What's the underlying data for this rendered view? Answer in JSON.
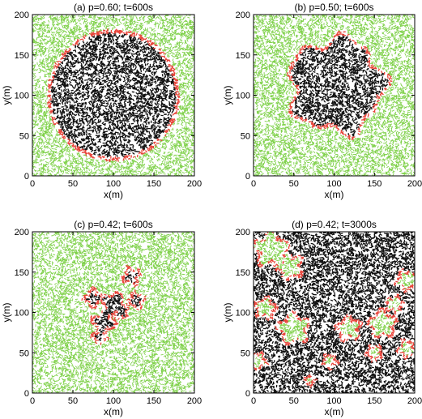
{
  "chart_data": [
    {
      "type": "scatter",
      "title": "(a) p=0.60; t=600s",
      "xlabel": "x(m)",
      "ylabel": "y(m)",
      "xlim": [
        0,
        200
      ],
      "ylim": [
        0,
        200
      ],
      "xticks": [
        0,
        50,
        100,
        150,
        200
      ],
      "yticks": [
        0,
        50,
        100,
        150,
        200
      ],
      "colors": {
        "unburned": "#7fd14a",
        "burning": "#e8443a",
        "burnt": "#111111",
        "background": "#ffffff"
      },
      "fronts": [
        {
          "shape": "disk",
          "center": [
            100,
            100
          ],
          "radius": 80
        }
      ]
    },
    {
      "type": "scatter",
      "title": "(b) p=0.50; t=600s",
      "xlabel": "x(m)",
      "ylabel": "y(m)",
      "xlim": [
        0,
        200
      ],
      "ylim": [
        0,
        200
      ],
      "xticks": [
        0,
        50,
        100,
        150,
        200
      ],
      "yticks": [
        0,
        50,
        100,
        150,
        200
      ],
      "colors": {
        "unburned": "#7fd14a",
        "burning": "#e8443a",
        "burnt": "#111111",
        "background": "#ffffff"
      },
      "fronts": [
        {
          "shape": "irregular",
          "center": [
            103,
            112
          ],
          "radius": 58,
          "roughness": 0.18
        }
      ]
    },
    {
      "type": "scatter",
      "title": "(c) p=0.42; t=600s",
      "xlabel": "x(m)",
      "ylabel": "y(m)",
      "xlim": [
        0,
        200
      ],
      "ylim": [
        0,
        200
      ],
      "xticks": [
        0,
        50,
        100,
        150,
        200
      ],
      "yticks": [
        0,
        50,
        100,
        150,
        200
      ],
      "colors": {
        "unburned": "#7fd14a",
        "burning": "#e8443a",
        "burnt": "#111111",
        "background": "#ffffff"
      },
      "fronts": [
        {
          "shape": "blob",
          "center": [
            100,
            110
          ],
          "radius": 14
        },
        {
          "shape": "blob",
          "center": [
            75,
            118
          ],
          "radius": 10
        },
        {
          "shape": "blob",
          "center": [
            122,
            145
          ],
          "radius": 10
        },
        {
          "shape": "blob",
          "center": [
            128,
            115
          ],
          "radius": 9
        },
        {
          "shape": "blob",
          "center": [
            88,
            88
          ],
          "radius": 13
        },
        {
          "shape": "blob",
          "center": [
            83,
            70
          ],
          "radius": 8
        },
        {
          "shape": "blob",
          "center": [
            110,
            100
          ],
          "radius": 8
        }
      ]
    },
    {
      "type": "scatter",
      "title": "(d) p=0.42; t=3000s",
      "xlabel": "x(m)",
      "ylabel": "y(m)",
      "xlim": [
        0,
        200
      ],
      "ylim": [
        0,
        200
      ],
      "xticks": [
        0,
        50,
        100,
        150,
        200
      ],
      "yticks": [
        0,
        50,
        100,
        150,
        200
      ],
      "colors": {
        "unburned": "#7fd14a",
        "burning": "#e8443a",
        "burnt": "#111111",
        "background": "#ffffff"
      },
      "inverted": true,
      "unburned_patches": [
        {
          "center": [
            22,
            178
          ],
          "radius": 20
        },
        {
          "center": [
            45,
            157
          ],
          "radius": 15
        },
        {
          "center": [
            190,
            140
          ],
          "radius": 12
        },
        {
          "center": [
            175,
            110
          ],
          "radius": 10
        },
        {
          "center": [
            15,
            105
          ],
          "radius": 12
        },
        {
          "center": [
            50,
            80
          ],
          "radius": 18
        },
        {
          "center": [
            118,
            80
          ],
          "radius": 14
        },
        {
          "center": [
            160,
            85
          ],
          "radius": 16
        },
        {
          "center": [
            190,
            55
          ],
          "radius": 10
        },
        {
          "center": [
            5,
            40
          ],
          "radius": 10
        },
        {
          "center": [
            150,
            50
          ],
          "radius": 9
        },
        {
          "center": [
            70,
            15
          ],
          "radius": 6
        },
        {
          "center": [
            95,
            40
          ],
          "radius": 8
        }
      ]
    }
  ]
}
